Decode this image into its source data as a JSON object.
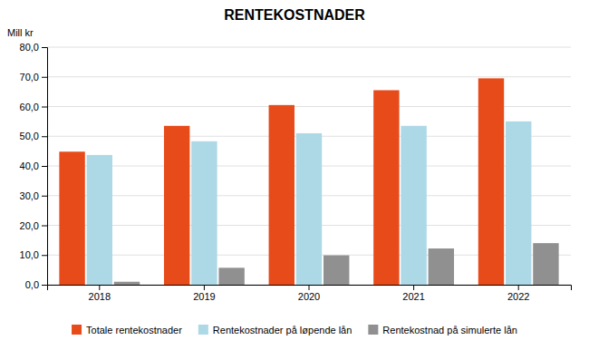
{
  "chart_data": {
    "type": "bar",
    "title": "RENTEKOSTNADER",
    "ylabel": "Mill kr",
    "categories": [
      "2018",
      "2019",
      "2020",
      "2021",
      "2022"
    ],
    "series": [
      {
        "name": "Totale rentekostnader",
        "color": "#E84B1A",
        "values": [
          44.8,
          53.5,
          60.5,
          65.5,
          69.5
        ]
      },
      {
        "name": "Rentekostnader på løpende lån",
        "color": "#ADD8E6",
        "values": [
          43.7,
          48.3,
          51.0,
          53.5,
          55.0
        ]
      },
      {
        "name": "Rentekostnad på simulerte lån",
        "color": "#909090",
        "values": [
          1.0,
          5.7,
          9.9,
          12.2,
          14.0
        ]
      }
    ],
    "ylim": [
      0,
      80
    ],
    "yticks": [
      {
        "value": 0,
        "label": "0,0"
      },
      {
        "value": 10,
        "label": "10,0"
      },
      {
        "value": 20,
        "label": "20,0"
      },
      {
        "value": 30,
        "label": "30,0"
      },
      {
        "value": 40,
        "label": "40,0"
      },
      {
        "value": 50,
        "label": "50,0"
      },
      {
        "value": 60,
        "label": "60,0"
      },
      {
        "value": 70,
        "label": "70,0"
      },
      {
        "value": 80,
        "label": "80,0"
      }
    ],
    "grid": true,
    "legend": "bottom"
  }
}
